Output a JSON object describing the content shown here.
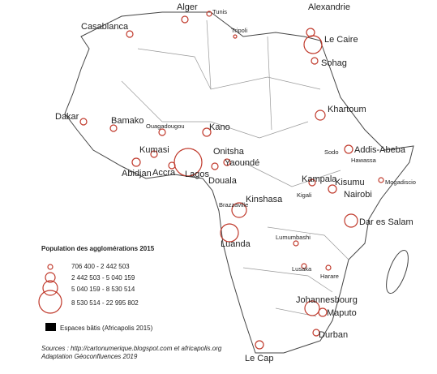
{
  "cities": [
    "Alger",
    "Tunis",
    "Casablanca",
    "Tripoli",
    "Alexandrie",
    "Le Caire",
    "Sohag",
    "Khartoum",
    "Dakar",
    "Bamako",
    "Ouagadougou",
    "Kano",
    "Addis-Abeba",
    "Sodo",
    "Hawassa",
    "Kumasi",
    "Onitsha",
    "Abidjan",
    "Accra",
    "Lagos",
    "Douala",
    "Yaoundé",
    "Kampala",
    "Kisumu",
    "Kigali",
    "Nairobi",
    "Mogadiscio",
    "Brazzaville",
    "Kinshasa",
    "Dar es Salam",
    "Luanda",
    "Lumumbashi",
    "Lusaka",
    "Harare",
    "Johannesbourg",
    "Maputo",
    "Durban",
    "Le Cap"
  ],
  "legend": {
    "title": "Population des agglomérations 2015",
    "classes": [
      "706 400 - 2 442 503",
      "2 442 503 - 5 040 159",
      "5 040 159 - 8 530 514",
      "8 530 514 - 22 995 802"
    ],
    "built": "Espaces bâtis (Africapolis 2015)"
  },
  "sources": [
    "Sources :  http://cartonumerique.blogspot.com et africapolis.org",
    "Adaptation Géoconfluences 2019"
  ]
}
